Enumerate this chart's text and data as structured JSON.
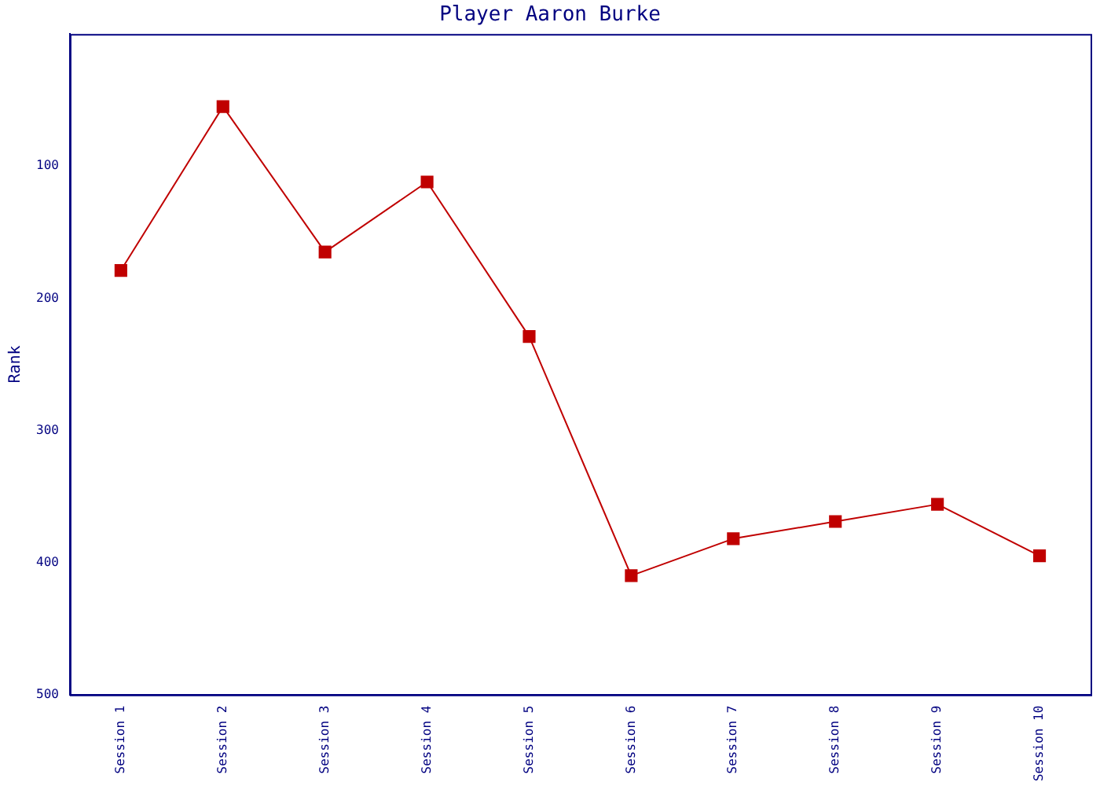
{
  "chart_data": {
    "type": "line",
    "title": "Player Aaron Burke",
    "ylabel": "Rank",
    "categories": [
      "Session 1",
      "Session 2",
      "Session 3",
      "Session 4",
      "Session 5",
      "Session 6",
      "Session 7",
      "Session 8",
      "Session 9",
      "Session 10"
    ],
    "series": [
      {
        "color": "#c00000",
        "values": [
          179,
          55,
          165,
          112,
          229,
          410,
          382,
          369,
          356,
          395
        ]
      }
    ],
    "ylim": [
      500,
      0
    ],
    "yticks": [
      100,
      200,
      300,
      400,
      500
    ],
    "grid": false,
    "legend": false,
    "marker": "square",
    "line_style": "solid"
  }
}
